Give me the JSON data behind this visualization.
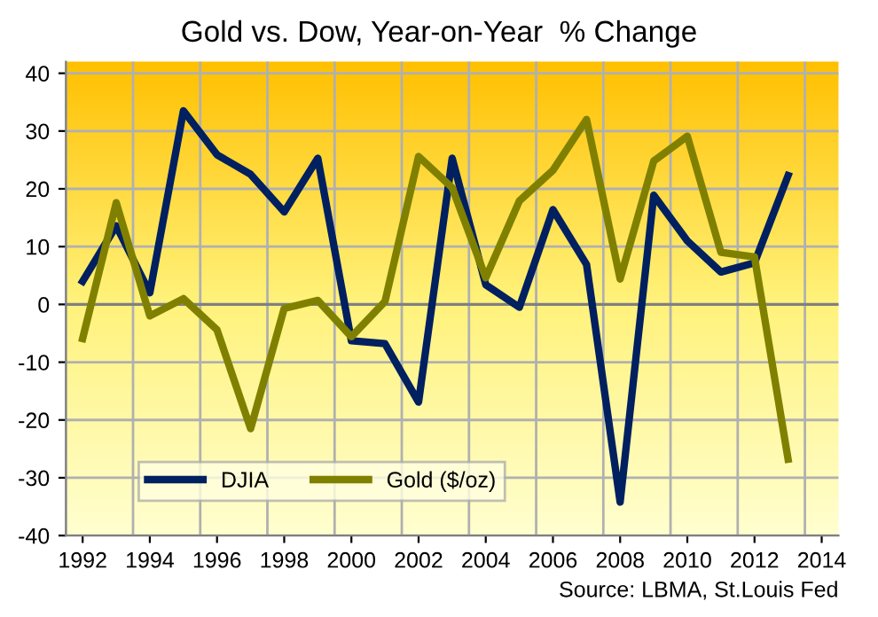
{
  "chart_data": {
    "type": "line",
    "title": "Gold vs. Dow, Year-on-Year  % Change",
    "x": [
      1992,
      1993,
      1994,
      1995,
      1996,
      1997,
      1998,
      1999,
      2000,
      2001,
      2002,
      2003,
      2004,
      2005,
      2006,
      2007,
      2008,
      2009,
      2010,
      2011,
      2012,
      2013
    ],
    "series": [
      {
        "name": "DJIA",
        "color": "#002060",
        "values": [
          4,
          13.6,
          2,
          33.5,
          25.9,
          22.5,
          16,
          25.3,
          -6.3,
          -6.8,
          -16.9,
          25.3,
          3.4,
          -0.5,
          16.4,
          6.9,
          -34.2,
          18.9,
          11,
          5.6,
          7.2,
          22.3
        ]
      },
      {
        "name": "Gold ($/oz)",
        "color": "#808000",
        "values": [
          -5.9,
          17.6,
          -2,
          1,
          -4.4,
          -21.5,
          -0.7,
          0.7,
          -5.6,
          0.5,
          25.6,
          20.2,
          4.6,
          17.9,
          23.2,
          32,
          4.4,
          24.8,
          29.1,
          9,
          8.2,
          -26.8
        ]
      }
    ],
    "xlim": [
      1991.5,
      2014.5
    ],
    "xticks": [
      1992,
      1994,
      1996,
      1998,
      2000,
      2002,
      2004,
      2006,
      2008,
      2010,
      2012,
      2014
    ],
    "ylim": [
      -40,
      42
    ],
    "yticks": [
      -40,
      -30,
      -20,
      -10,
      0,
      10,
      20,
      30,
      40
    ],
    "grid": true,
    "legend": "lower left",
    "marker": "none",
    "line_style": "solid",
    "annotations": [
      "Source: LBMA, St.Louis Fed"
    ]
  }
}
